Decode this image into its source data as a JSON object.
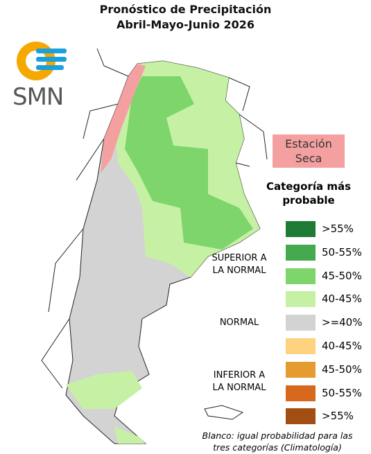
{
  "header": {
    "title": "Pronóstico de Precipitación",
    "subtitle": "Abril-Mayo-Junio 2026"
  },
  "logo": {
    "text": "SMN"
  },
  "map": {
    "annotation": "Estación Seca"
  },
  "legend": {
    "title": "Categoría más probable",
    "groups": [
      {
        "label": "SUPERIOR A LA NORMAL",
        "items": [
          {
            "label": ">55%",
            "color": "#1e7b34"
          },
          {
            "label": "50-55%",
            "color": "#45a94f"
          },
          {
            "label": "45-50%",
            "color": "#7dd56b"
          },
          {
            "label": "40-45%",
            "color": "#c6f1a4"
          }
        ]
      },
      {
        "label": "NORMAL",
        "items": [
          {
            "label": ">=40%",
            "color": "#d3d3d3"
          }
        ]
      },
      {
        "label": "INFERIOR A LA NORMAL",
        "items": [
          {
            "label": "40-45%",
            "color": "#ffd27f"
          },
          {
            "label": "45-50%",
            "color": "#e69b2e"
          },
          {
            "label": "50-55%",
            "color": "#d8691c"
          },
          {
            "label": ">55%",
            "color": "#a24e12"
          }
        ]
      }
    ]
  },
  "note": "Blanco: igual probabilidad para las tres categorías (Climatología)"
}
